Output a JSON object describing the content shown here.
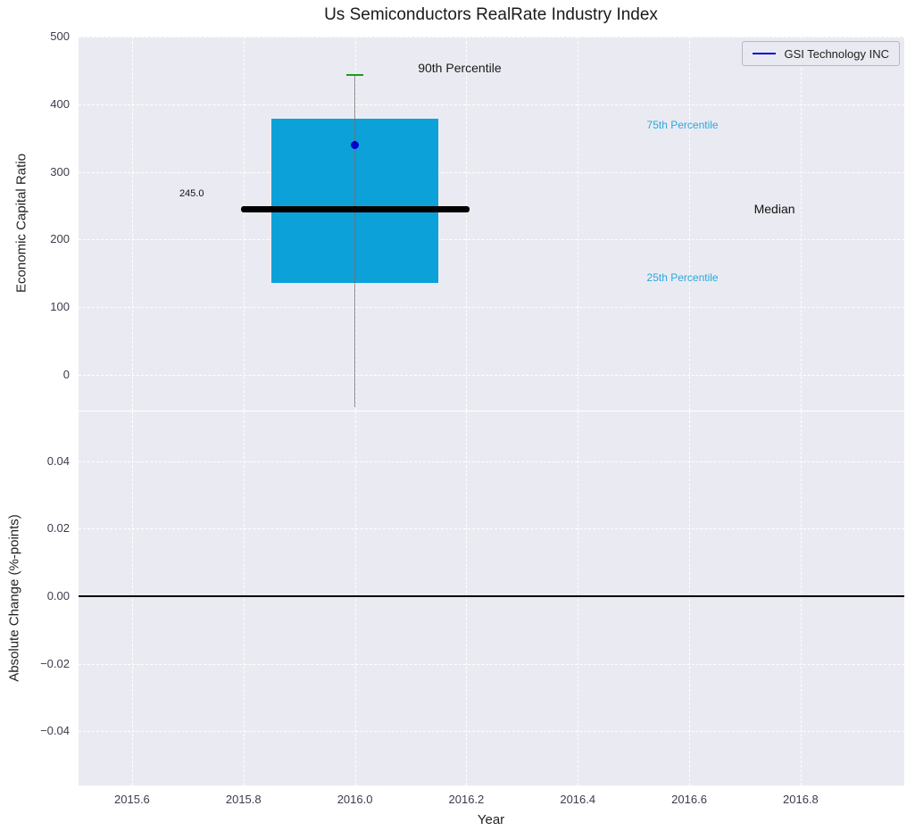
{
  "figure": {
    "title": "Us Semiconductors RealRate Industry Index",
    "legend": {
      "label": "GSI Technology INC",
      "line_color": "#0000cd"
    }
  },
  "chart_data": {
    "type": "boxplot",
    "title": "Us Semiconductors RealRate Industry Index",
    "xlabel": "Year",
    "xlim": [
      2015.504,
      2016.986
    ],
    "xticks": [
      {
        "v": 2015.6,
        "label": "2015.6"
      },
      {
        "v": 2015.8,
        "label": "2015.8"
      },
      {
        "v": 2016.0,
        "label": "2016.0"
      },
      {
        "v": 2016.2,
        "label": "2016.2"
      },
      {
        "v": 2016.4,
        "label": "2016.4"
      },
      {
        "v": 2016.6,
        "label": "2016.6"
      },
      {
        "v": 2016.8,
        "label": "2016.8"
      }
    ],
    "top_panel": {
      "ylabel": "Economic Capital Ratio",
      "ylim": [
        -52.8,
        500
      ],
      "yticks": [
        {
          "v": 500,
          "label": "500"
        },
        {
          "v": 400,
          "label": "400"
        },
        {
          "v": 300,
          "label": "300"
        },
        {
          "v": 200,
          "label": "200"
        },
        {
          "v": 100,
          "label": "100"
        },
        {
          "v": 0,
          "label": "0"
        }
      ],
      "box": {
        "x_left": 2015.85,
        "x_right": 2016.15,
        "q1": 136,
        "q3": 378,
        "fill_color": "#0da1d9"
      },
      "median": {
        "value": 245,
        "label": "245.0",
        "x_left": 2015.795,
        "x_right": 2016.205,
        "color": "#000000"
      },
      "whisker": {
        "x": 2016.0,
        "low": -48,
        "high": 443,
        "color": "#6e6e6e"
      },
      "percentile_90_cap": {
        "x": 2016.0,
        "value": 443,
        "half_width": 0.015,
        "color": "#1f9a1f"
      },
      "company_point": {
        "name": "GSI Technology INC",
        "x": 2016.0,
        "value": 340,
        "color": "#0000cd"
      },
      "annotations": [
        {
          "text": "90th Percentile",
          "x": 2016.188,
          "y": 454,
          "color": "#1a1a1a",
          "size": 14
        },
        {
          "text": "75th Percentile",
          "x": 2016.588,
          "y": 369,
          "color": "#2aa7de",
          "size": 12
        },
        {
          "text": "Median",
          "x": 2016.753,
          "y": 245,
          "color": "#111111",
          "size": 14
        },
        {
          "text": "25th Percentile",
          "x": 2016.588,
          "y": 144,
          "color": "#2aa7de",
          "size": 12
        },
        {
          "text": "245.0",
          "x": 2015.707,
          "y": 268,
          "color": "#111111",
          "size": 11
        }
      ]
    },
    "bottom_panel": {
      "ylabel": "Absolute Change (%-points)",
      "ylim": [
        -0.056,
        0.0547
      ],
      "yticks": [
        {
          "v": 0.04,
          "label": "0.04"
        },
        {
          "v": 0.02,
          "label": "0.02"
        },
        {
          "v": 0.0,
          "label": "0.00"
        },
        {
          "v": -0.02,
          "label": "−0.02"
        },
        {
          "v": -0.04,
          "label": "−0.04"
        }
      ],
      "zero_line": {
        "value": 0.0,
        "color": "#000000"
      }
    }
  }
}
